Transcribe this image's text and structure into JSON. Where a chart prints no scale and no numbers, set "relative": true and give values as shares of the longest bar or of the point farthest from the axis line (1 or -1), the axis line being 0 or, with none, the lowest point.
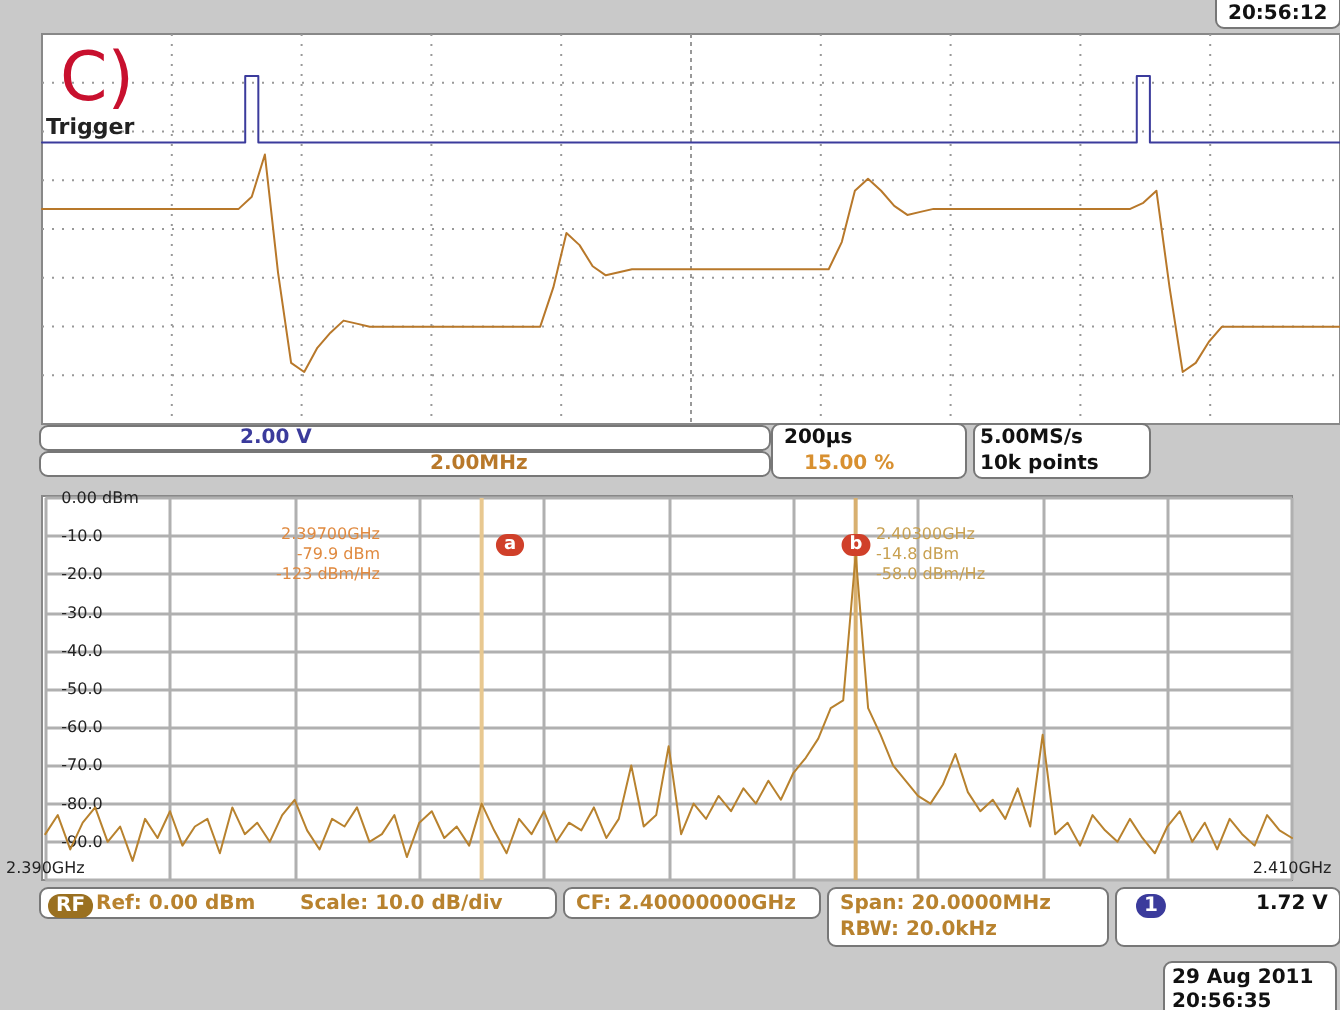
{
  "chart_data": [
    {
      "type": "line",
      "relative": true,
      "grid": true,
      "categories": [
        null,
        null,
        null,
        null,
        null,
        null,
        null,
        null,
        null,
        null,
        null,
        null,
        null,
        null,
        null,
        null,
        null,
        null,
        null,
        null,
        null,
        null,
        null,
        null,
        null,
        null,
        null,
        null,
        null,
        null,
        null,
        null,
        null,
        null,
        null,
        null,
        null,
        null,
        null,
        null,
        null,
        null,
        null,
        null,
        null,
        null,
        null,
        null,
        null,
        null,
        null,
        null,
        null,
        null,
        null,
        null,
        null,
        null,
        null,
        null,
        null,
        null,
        null,
        null,
        null,
        null,
        null,
        null,
        null,
        null,
        null,
        null,
        null,
        null,
        null,
        null,
        null,
        null,
        null,
        null,
        null,
        null,
        null,
        null,
        null,
        null,
        null,
        null,
        null,
        null,
        null,
        null,
        null,
        null,
        null,
        null,
        null,
        null,
        null,
        null
      ],
      "series": [
        {
          "name": "Trigger",
          "type": "step",
          "color": "#3b3b9c",
          "values": [
            0.78,
            0.78,
            0.78,
            0.78,
            0.78,
            0.78,
            0.78,
            0.78,
            0.78,
            0.78,
            0.78,
            0.78,
            0.78,
            0.78,
            0.78,
            0.78,
            1.0,
            0.78,
            0.78,
            0.78,
            0.78,
            0.78,
            0.78,
            0.78,
            0.78,
            0.78,
            0.78,
            0.78,
            0.78,
            0.78,
            0.78,
            0.78,
            0.78,
            0.78,
            0.78,
            0.78,
            0.78,
            0.78,
            0.78,
            0.78,
            0.78,
            0.78,
            0.78,
            0.78,
            0.78,
            0.78,
            0.78,
            0.78,
            0.78,
            0.78,
            0.78,
            0.78,
            0.78,
            0.78,
            0.78,
            0.78,
            0.78,
            0.78,
            0.78,
            0.78,
            0.78,
            0.78,
            0.78,
            0.78,
            0.78,
            0.78,
            0.78,
            0.78,
            0.78,
            0.78,
            0.78,
            0.78,
            0.78,
            0.78,
            0.78,
            0.78,
            0.78,
            0.78,
            0.78,
            0.78,
            0.78,
            0.78,
            0.78,
            0.78,
            1.0,
            0.78,
            0.78,
            0.78,
            0.78,
            0.78,
            0.78,
            0.78,
            0.78,
            0.78,
            0.78,
            0.78,
            0.78,
            0.78,
            0.78,
            0.78
          ]
        },
        {
          "color": "#b8782a",
          "values": [
            0.56,
            0.56,
            0.56,
            0.56,
            0.56,
            0.56,
            0.56,
            0.56,
            0.56,
            0.56,
            0.56,
            0.56,
            0.56,
            0.56,
            0.56,
            0.56,
            0.6,
            0.74,
            0.35,
            0.05,
            0.02,
            0.1,
            0.15,
            0.19,
            0.18,
            0.17,
            0.17,
            0.17,
            0.17,
            0.17,
            0.17,
            0.17,
            0.17,
            0.17,
            0.17,
            0.17,
            0.17,
            0.17,
            0.17,
            0.3,
            0.48,
            0.44,
            0.37,
            0.34,
            0.35,
            0.36,
            0.36,
            0.36,
            0.36,
            0.36,
            0.36,
            0.36,
            0.36,
            0.36,
            0.36,
            0.36,
            0.36,
            0.36,
            0.36,
            0.36,
            0.36,
            0.45,
            0.62,
            0.66,
            0.62,
            0.57,
            0.54,
            0.55,
            0.56,
            0.56,
            0.56,
            0.56,
            0.56,
            0.56,
            0.56,
            0.56,
            0.56,
            0.56,
            0.56,
            0.56,
            0.56,
            0.56,
            0.56,
            0.56,
            0.58,
            0.62,
            0.3,
            0.02,
            0.05,
            0.12,
            0.17,
            0.17,
            0.17,
            0.17,
            0.17,
            0.17,
            0.17,
            0.17,
            0.17,
            0.17
          ]
        }
      ],
      "annotations": [
        "C)",
        "2.00 V",
        "2.00MHz",
        "200µs",
        "15.00 %",
        "5.00MS/s",
        "10k points",
        "20:56:12"
      ]
    },
    {
      "type": "line",
      "grid": true,
      "xlim": [
        2.39,
        2.41
      ],
      "xticks": [
        {
          "value": 2.39,
          "label": "2.390GHz"
        },
        {
          "value": 2.392,
          "label": null
        },
        {
          "value": 2.394,
          "label": null
        },
        {
          "value": 2.396,
          "label": null
        },
        {
          "value": 2.398,
          "label": null
        },
        {
          "value": 2.4,
          "label": null
        },
        {
          "value": 2.402,
          "label": null
        },
        {
          "value": 2.404,
          "label": null
        },
        {
          "value": 2.406,
          "label": null
        },
        {
          "value": 2.408,
          "label": null
        },
        {
          "value": 2.41,
          "label": "2.410GHz"
        }
      ],
      "ylim": [
        -100,
        0
      ],
      "yticks": [
        {
          "value": 0,
          "label": "0.00 dBm"
        },
        {
          "value": -10,
          "label": "-10.0"
        },
        {
          "value": -20,
          "label": "-20.0"
        },
        {
          "value": -30,
          "label": "-30.0"
        },
        {
          "value": -40,
          "label": "-40.0"
        },
        {
          "value": -50,
          "label": "-50.0"
        },
        {
          "value": -60,
          "label": "-60.0"
        },
        {
          "value": -70,
          "label": "-70.0"
        },
        {
          "value": -80,
          "label": "-80.0"
        },
        {
          "value": -90,
          "label": "-90.0"
        },
        {
          "value": -100,
          "label": null
        }
      ],
      "series": [
        {
          "color": "#b8822e",
          "x": [
            2.39,
            2.3902,
            2.3904,
            2.3906,
            2.3908,
            2.391,
            2.3912,
            2.3914,
            2.3916,
            2.3918,
            2.392,
            2.3922,
            2.3924,
            2.3926,
            2.3928,
            2.393,
            2.3932,
            2.3934,
            2.3936,
            2.3938,
            2.394,
            2.3942,
            2.3944,
            2.3946,
            2.3948,
            2.395,
            2.3952,
            2.3954,
            2.3956,
            2.3958,
            2.396,
            2.3962,
            2.3964,
            2.3966,
            2.3968,
            2.397,
            2.3972,
            2.3974,
            2.3976,
            2.3978,
            2.398,
            2.3982,
            2.3984,
            2.3986,
            2.3988,
            2.399,
            2.3992,
            2.3994,
            2.3996,
            2.3998,
            2.4,
            2.4002,
            2.4004,
            2.4006,
            2.4008,
            2.401,
            2.4012,
            2.4014,
            2.4016,
            2.4018,
            2.402,
            2.4022,
            2.4024,
            2.4026,
            2.4028,
            2.403,
            2.4032,
            2.4034,
            2.4036,
            2.4038,
            2.404,
            2.4042,
            2.4044,
            2.4046,
            2.4048,
            2.405,
            2.4052,
            2.4054,
            2.4056,
            2.4058,
            2.406,
            2.4062,
            2.4064,
            2.4066,
            2.4068,
            2.407,
            2.4072,
            2.4074,
            2.4076,
            2.4078,
            2.408,
            2.4082,
            2.4084,
            2.4086,
            2.4088,
            2.409,
            2.4092,
            2.4094,
            2.4096,
            2.4098,
            2.41
          ],
          "values": [
            -88,
            -83,
            -92,
            -85,
            -81,
            -90,
            -86,
            -95,
            -84,
            -89,
            -82,
            -91,
            -86,
            -84,
            -93,
            -81,
            -88,
            -85,
            -90,
            -83,
            -79,
            -87,
            -92,
            -84,
            -86,
            -81,
            -90,
            -88,
            -83,
            -94,
            -85,
            -82,
            -89,
            -86,
            -91,
            -80,
            -87,
            -93,
            -84,
            -88,
            -82,
            -90,
            -85,
            -87,
            -81,
            -89,
            -84,
            -70,
            -86,
            -83,
            -65,
            -88,
            -80,
            -84,
            -78,
            -82,
            -76,
            -80,
            -74,
            -79,
            -72,
            -68,
            -63,
            -55,
            -53,
            -14.8,
            -55,
            -62,
            -70,
            -74,
            -78,
            -80,
            -75,
            -67,
            -77,
            -82,
            -79,
            -84,
            -76,
            -86,
            -62,
            -88,
            -85,
            -91,
            -83,
            -87,
            -90,
            -84,
            -89,
            -93,
            -86,
            -82,
            -90,
            -85,
            -92,
            -84,
            -88,
            -91,
            -83,
            -87,
            -89
          ]
        }
      ],
      "ref_lines": [
        {
          "axis": "x",
          "value": 2.397,
          "color": "#e8c890"
        },
        {
          "axis": "x",
          "value": 2.403,
          "color": "#d8b070"
        }
      ],
      "annotations": [
        "2.39700GHz\n-79.9 dBm\n-123 dBm/Hz",
        "a",
        "b",
        "2.40300GHz\n-14.8 dBm\n-58.0 dBm/Hz",
        "RF",
        "Ref: 0.00 dBm",
        "Scale: 10.0 dB/div",
        "CF: 2.40000000GHz",
        "Span: 20.0000MHz",
        "RBW: 20.0kHz",
        "1",
        "1.72 V",
        "29 Aug 2011",
        "20:56:35"
      ]
    }
  ]
}
